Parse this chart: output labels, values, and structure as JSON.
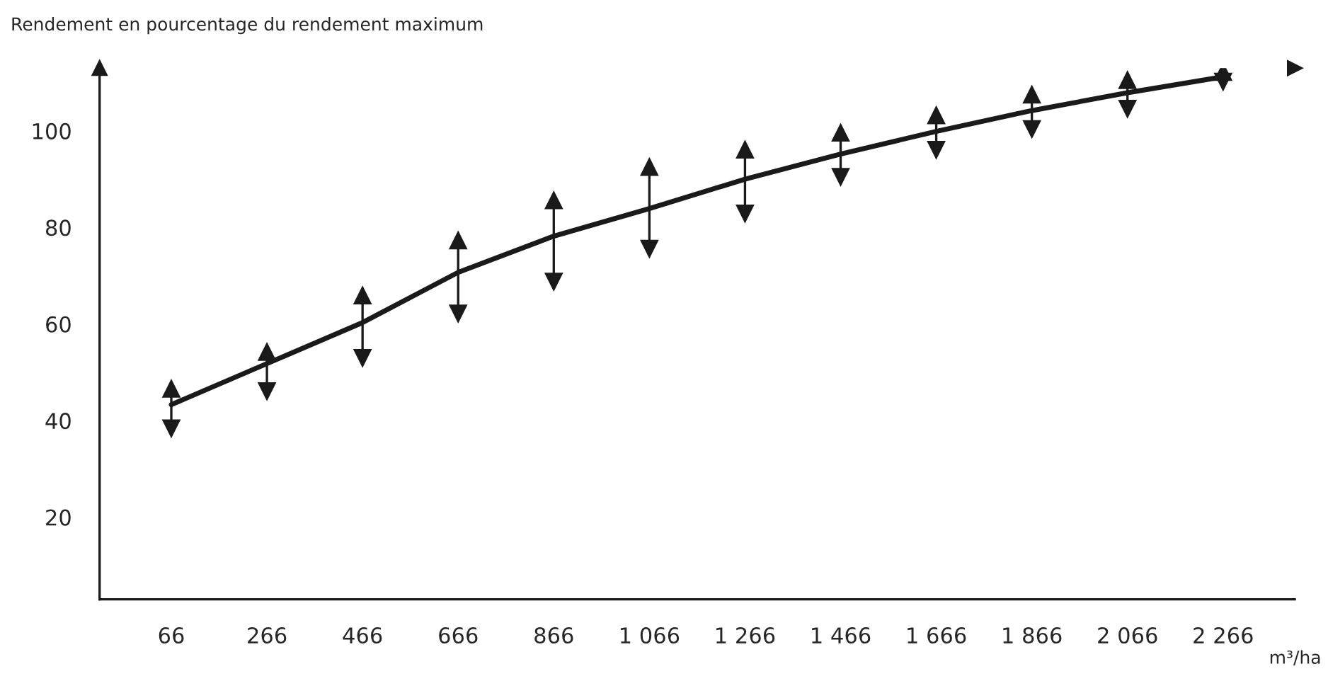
{
  "chart_data": {
    "type": "line",
    "ylabel": "Rendement en pourcentage du rendement maximum",
    "xlabel": "m³/ha",
    "categories": [
      "66",
      "266",
      "466",
      "666",
      "866",
      "1 066",
      "1 266",
      "1 466",
      "1 666",
      "1 866",
      "2 066",
      "2 266"
    ],
    "series": [
      {
        "color": "#1a1a1a",
        "values": [
          43.3,
          51.8,
          60.3,
          70.7,
          78.2,
          83.9,
          90.0,
          95.2,
          99.9,
          104.2,
          107.9,
          111.2
        ],
        "errors": [
          [
            38.4,
            46.6
          ],
          [
            46.1,
            54.2
          ],
          [
            53.0,
            65.9
          ],
          [
            62.2,
            77.3
          ],
          [
            68.8,
            85.6
          ],
          [
            75.6,
            92.5
          ],
          [
            82.9,
            96.1
          ],
          [
            90.5,
            99.6
          ],
          [
            96.1,
            103.2
          ],
          [
            100.4,
            107.5
          ],
          [
            104.6,
            110.5
          ],
          [
            110.2,
            112.2
          ]
        ]
      }
    ],
    "ylim": [
      3,
      113
    ],
    "yticks": [
      20,
      40,
      60,
      80,
      100
    ],
    "grid": false,
    "marker": "none",
    "line_style": "solid"
  }
}
